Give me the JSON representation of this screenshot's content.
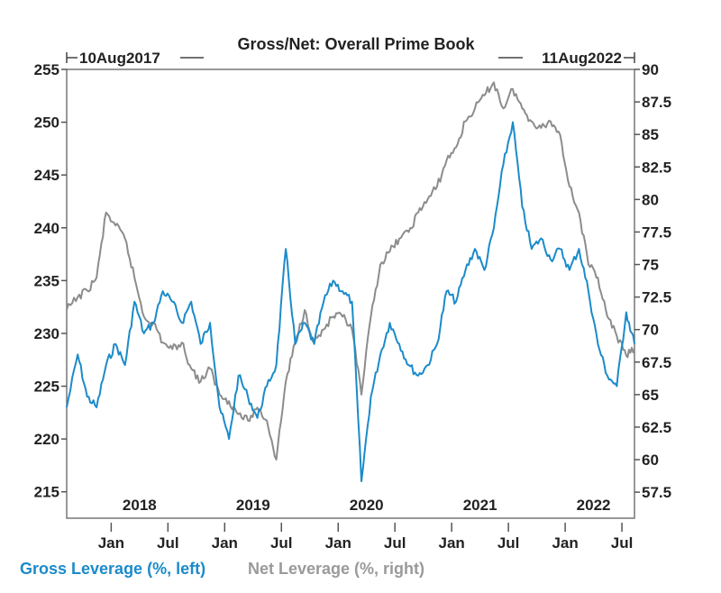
{
  "chart_data": {
    "type": "line",
    "title": "Gross/Net: Overall Prime Book",
    "start_label": "10Aug2017",
    "end_label": "11Aug2022",
    "x": [
      "2017-08",
      "2017-09",
      "2017-10",
      "2017-11",
      "2017-12",
      "2018-01",
      "2018-02",
      "2018-03",
      "2018-04",
      "2018-05",
      "2018-06",
      "2018-07",
      "2018-08",
      "2018-09",
      "2018-10",
      "2018-11",
      "2018-12",
      "2019-01",
      "2019-02",
      "2019-03",
      "2019-04",
      "2019-05",
      "2019-06",
      "2019-07",
      "2019-08",
      "2019-09",
      "2019-10",
      "2019-11",
      "2019-12",
      "2020-01",
      "2020-02",
      "2020-03",
      "2020-04",
      "2020-05",
      "2020-06",
      "2020-07",
      "2020-08",
      "2020-09",
      "2020-10",
      "2020-11",
      "2020-12",
      "2021-01",
      "2021-02",
      "2021-03",
      "2021-04",
      "2021-05",
      "2021-06",
      "2021-07",
      "2021-08",
      "2021-09",
      "2021-10",
      "2021-11",
      "2021-12",
      "2022-01",
      "2022-02",
      "2022-03",
      "2022-04",
      "2022-05",
      "2022-06",
      "2022-07",
      "2022-08"
    ],
    "series": [
      {
        "name": "Gross Leverage (%, left)",
        "axis": "left",
        "color": "#1b8bc9",
        "values": [
          223,
          228,
          224,
          223,
          227,
          229,
          227,
          233,
          230,
          231,
          234,
          233,
          231,
          233,
          229,
          231,
          223,
          220,
          226,
          224,
          222,
          225,
          227,
          238,
          229,
          231,
          229,
          233,
          235,
          234,
          233,
          216,
          224,
          228,
          231,
          229,
          227,
          226,
          227,
          229,
          234,
          233,
          236,
          238,
          236,
          240,
          246,
          250,
          242,
          238,
          239,
          237,
          238,
          236,
          238,
          234,
          229,
          226,
          225,
          232,
          229
        ]
      },
      {
        "name": "Net Leverage (%, right)",
        "axis": "right",
        "color": "#8c8c8c",
        "values": [
          71.5,
          72.5,
          73,
          74,
          79,
          78,
          77,
          74,
          71,
          70.5,
          69,
          68.5,
          69,
          67,
          66,
          67,
          65,
          64.5,
          63.5,
          63,
          64,
          63,
          60,
          66,
          69,
          71.5,
          69,
          70,
          71,
          71,
          70,
          65,
          71,
          75,
          76,
          77,
          77.5,
          79,
          80,
          81,
          83,
          84,
          86,
          87,
          88,
          89,
          87,
          88.5,
          87,
          86,
          85.5,
          86,
          85,
          81,
          79,
          75,
          74,
          71,
          69.5,
          68,
          68.5
        ]
      }
    ],
    "left_axis": {
      "ylim": [
        212.5,
        255
      ],
      "ticks": [
        "215",
        "220",
        "225",
        "230",
        "235",
        "240",
        "245",
        "250",
        "255"
      ]
    },
    "right_axis": {
      "ylim": [
        55.5,
        90
      ],
      "ticks": [
        "57.5",
        "60",
        "62.5",
        "65",
        "67.5",
        "70",
        "72.5",
        "75",
        "77.5",
        "80",
        "82.5",
        "85",
        "87.5",
        "90"
      ]
    },
    "x_month_ticks": [
      {
        "date": "2018-01",
        "label": "Jan"
      },
      {
        "date": "2018-07",
        "label": "Jul"
      },
      {
        "date": "2019-01",
        "label": "Jan"
      },
      {
        "date": "2019-07",
        "label": "Jul"
      },
      {
        "date": "2020-01",
        "label": "Jan"
      },
      {
        "date": "2020-07",
        "label": "Jul"
      },
      {
        "date": "2021-01",
        "label": "Jan"
      },
      {
        "date": "2021-07",
        "label": "Jul"
      },
      {
        "date": "2022-01",
        "label": "Jan"
      },
      {
        "date": "2022-07",
        "label": "Jul"
      }
    ],
    "x_year_labels": [
      "2018",
      "2019",
      "2020",
      "2021",
      "2022"
    ],
    "xlim": [
      "2017-08-10",
      "2022-08-11"
    ],
    "grid": false,
    "legend_position": "bottom-left"
  }
}
